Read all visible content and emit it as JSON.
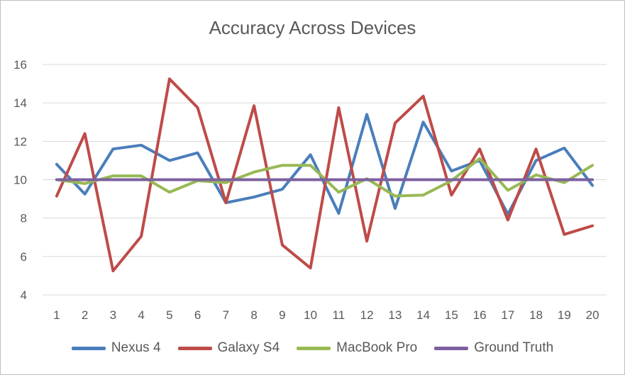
{
  "chart_data": {
    "type": "line",
    "title": "Accuracy Across Devices",
    "xlabel": "",
    "ylabel": "",
    "x": [
      1,
      2,
      3,
      4,
      5,
      6,
      7,
      8,
      9,
      10,
      11,
      12,
      13,
      14,
      15,
      16,
      17,
      18,
      19,
      20
    ],
    "ylim": [
      4,
      16
    ],
    "yticks": [
      4,
      6,
      8,
      10,
      12,
      14,
      16
    ],
    "grid": true,
    "legend_position": "bottom",
    "series": [
      {
        "name": "Nexus 4",
        "color": "#4a7ebb",
        "values": [
          10.8,
          9.25,
          11.6,
          11.8,
          11.0,
          11.4,
          8.8,
          9.1,
          9.5,
          11.3,
          8.25,
          13.4,
          8.5,
          13.0,
          10.45,
          11.0,
          8.2,
          11.0,
          11.65,
          9.7
        ]
      },
      {
        "name": "Galaxy S4",
        "color": "#be4b48",
        "values": [
          9.15,
          12.4,
          5.25,
          7.05,
          15.25,
          13.75,
          8.8,
          13.85,
          6.6,
          5.4,
          13.75,
          6.8,
          12.95,
          14.35,
          9.2,
          11.6,
          7.9,
          11.6,
          7.15,
          7.6
        ]
      },
      {
        "name": "MacBook Pro",
        "color": "#98b954",
        "values": [
          10.0,
          9.8,
          10.2,
          10.2,
          9.35,
          9.95,
          9.85,
          10.4,
          10.75,
          10.75,
          9.35,
          10.05,
          9.15,
          9.2,
          9.95,
          11.1,
          9.45,
          10.25,
          9.85,
          10.75
        ]
      },
      {
        "name": "Ground Truth",
        "color": "#7d60a0",
        "values": [
          10,
          10,
          10,
          10,
          10,
          10,
          10,
          10,
          10,
          10,
          10,
          10,
          10,
          10,
          10,
          10,
          10,
          10,
          10,
          10
        ]
      }
    ]
  }
}
